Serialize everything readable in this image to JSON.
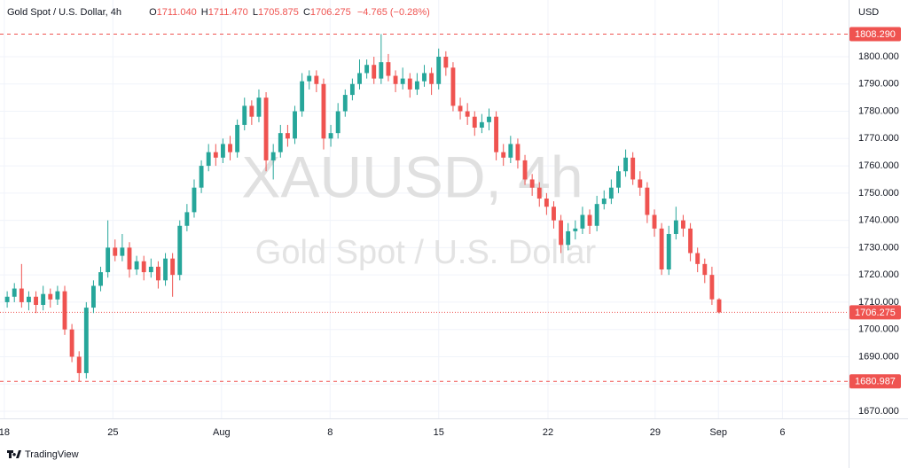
{
  "chart_data": {
    "type": "candlestick",
    "header": {
      "symbol": "Gold Spot / U.S. Dollar, 4h",
      "o_label": "O",
      "o": "1711.040",
      "h_label": "H",
      "h": "1711.470",
      "l_label": "L",
      "l": "1705.875",
      "c_label": "C",
      "c": "1706.275",
      "change": "−4.765 (−0.28%)"
    },
    "watermark": [
      "XAUUSD, 4h",
      "Gold Spot / U.S. Dollar"
    ],
    "currency": "USD",
    "footer": "TradingView",
    "up_color": "#26a69a",
    "down_color": "#ef5350",
    "grid": true,
    "xlim": [
      0,
      118
    ],
    "ylim": [
      1667.4,
      1820.8
    ],
    "xticks": [
      {
        "value": 0.6,
        "label": "18"
      },
      {
        "value": 15.7,
        "label": "25"
      },
      {
        "value": 30.8,
        "label": "Aug"
      },
      {
        "value": 45.9,
        "label": "8"
      },
      {
        "value": 61,
        "label": "15"
      },
      {
        "value": 76.2,
        "label": "22"
      },
      {
        "value": 91.1,
        "label": "29"
      },
      {
        "value": 99.9,
        "label": "Sep"
      },
      {
        "value": 108.8,
        "label": "6"
      }
    ],
    "yticks": [
      {
        "value": 1670,
        "label": "1670.000"
      },
      {
        "value": 1680,
        "label": "1680.000"
      },
      {
        "value": 1690,
        "label": "1690.000"
      },
      {
        "value": 1700,
        "label": "1700.000"
      },
      {
        "value": 1710,
        "label": "1710.000"
      },
      {
        "value": 1720,
        "label": "1720.000"
      },
      {
        "value": 1730,
        "label": "1730.000"
      },
      {
        "value": 1740,
        "label": "1740.000"
      },
      {
        "value": 1750,
        "label": "1750.000"
      },
      {
        "value": 1760,
        "label": "1760.000"
      },
      {
        "value": 1770,
        "label": "1770.000"
      },
      {
        "value": 1780,
        "label": "1780.000"
      },
      {
        "value": 1790,
        "label": "1790.000"
      },
      {
        "value": 1800,
        "label": "1800.000"
      }
    ],
    "price_lines": [
      {
        "value": 1808.29,
        "label": "1808.290",
        "style": "dashed"
      },
      {
        "value": 1706.275,
        "label": "1706.275",
        "style": "dotted"
      },
      {
        "value": 1680.987,
        "label": "1680.987",
        "style": "dashed"
      }
    ],
    "x": [
      1,
      2,
      3,
      4,
      5,
      6,
      7,
      8,
      9,
      10,
      11,
      12,
      13,
      14,
      15,
      16,
      17,
      18,
      19,
      20,
      21,
      22,
      23,
      24,
      25,
      26,
      27,
      28,
      29,
      30,
      31,
      32,
      33,
      34,
      35,
      36,
      37,
      38,
      39,
      40,
      41,
      42,
      43,
      44,
      45,
      46,
      47,
      48,
      49,
      50,
      51,
      52,
      53,
      54,
      55,
      56,
      57,
      58,
      59,
      60,
      61,
      62,
      63,
      64,
      65,
      66,
      67,
      68,
      69,
      70,
      71,
      72,
      73,
      74,
      75,
      76,
      77,
      78,
      79,
      80,
      81,
      82,
      83,
      84,
      85,
      86,
      87,
      88,
      89,
      90,
      91,
      92,
      93,
      94,
      95,
      96,
      97,
      98,
      99,
      100
    ],
    "open": [
      1710,
      1712,
      1715,
      1710,
      1712,
      1709,
      1713,
      1711,
      1714,
      1700,
      1690,
      1684,
      1708,
      1716,
      1721,
      1730,
      1727,
      1730,
      1722,
      1725,
      1721,
      1723,
      1718,
      1726,
      1720,
      1738,
      1743,
      1752,
      1760,
      1765,
      1763,
      1768,
      1765,
      1775,
      1782,
      1778,
      1785,
      1762,
      1765,
      1772,
      1770,
      1780,
      1791,
      1793,
      1790,
      1770,
      1772,
      1780,
      1786,
      1790,
      1794,
      1797,
      1792,
      1798,
      1793,
      1790,
      1792,
      1788,
      1791,
      1794,
      1790,
      1800,
      1796,
      1782,
      1780,
      1778,
      1774,
      1776,
      1778,
      1765,
      1763,
      1768,
      1762,
      1755,
      1752,
      1748,
      1745,
      1740,
      1731,
      1736,
      1737,
      1742,
      1738,
      1746,
      1748,
      1752,
      1758,
      1763,
      1755,
      1752,
      1742,
      1737,
      1722,
      1735,
      1740,
      1737,
      1728,
      1724,
      1720,
      1711.04
    ],
    "high": [
      1714,
      1717,
      1724,
      1714,
      1714,
      1716,
      1715,
      1716,
      1716,
      1702,
      1692,
      1710,
      1718,
      1723,
      1740,
      1733,
      1735,
      1732,
      1727,
      1727,
      1726,
      1725,
      1728,
      1728,
      1740,
      1746,
      1755,
      1762,
      1768,
      1768,
      1770,
      1771,
      1777,
      1785,
      1784,
      1788,
      1787,
      1768,
      1775,
      1775,
      1782,
      1794,
      1795,
      1795,
      1792,
      1775,
      1783,
      1788,
      1792,
      1799,
      1799,
      1800,
      1808.29,
      1801,
      1795,
      1796,
      1794,
      1794,
      1797,
      1796,
      1803,
      1802,
      1798,
      1785,
      1783,
      1780,
      1779,
      1781,
      1780,
      1768,
      1771,
      1770,
      1764,
      1757,
      1754,
      1750,
      1747,
      1742,
      1739,
      1740,
      1745,
      1744,
      1749,
      1751,
      1755,
      1760,
      1766,
      1765,
      1758,
      1754,
      1744,
      1739,
      1738,
      1745,
      1742,
      1739,
      1730,
      1726,
      1723,
      1711.47
    ],
    "low": [
      1708,
      1710,
      1708,
      1707,
      1706,
      1707,
      1708,
      1709,
      1698,
      1688,
      1680.987,
      1682,
      1706,
      1714,
      1719,
      1725,
      1725,
      1719,
      1720,
      1718,
      1719,
      1715,
      1716,
      1712,
      1718,
      1736,
      1741,
      1750,
      1758,
      1760,
      1761,
      1762,
      1763,
      1773,
      1775,
      1776,
      1758,
      1755,
      1763,
      1767,
      1768,
      1778,
      1788,
      1787,
      1766,
      1767,
      1770,
      1778,
      1784,
      1788,
      1792,
      1790,
      1790,
      1791,
      1787,
      1788,
      1785,
      1786,
      1789,
      1786,
      1788,
      1793,
      1780,
      1777,
      1775,
      1771,
      1772,
      1773,
      1762,
      1760,
      1761,
      1759,
      1753,
      1749,
      1745,
      1742,
      1737,
      1728,
      1729,
      1733,
      1735,
      1735,
      1736,
      1744,
      1746,
      1750,
      1756,
      1753,
      1749,
      1739,
      1734,
      1720,
      1720,
      1733,
      1734,
      1725,
      1721,
      1717,
      1709,
      1705.875
    ],
    "close": [
      1712,
      1715,
      1710,
      1712,
      1709,
      1713,
      1711,
      1714,
      1700,
      1690,
      1684,
      1708,
      1716,
      1721,
      1730,
      1727,
      1730,
      1722,
      1725,
      1721,
      1723,
      1718,
      1726,
      1720,
      1738,
      1743,
      1752,
      1760,
      1765,
      1763,
      1768,
      1765,
      1775,
      1782,
      1778,
      1785,
      1762,
      1765,
      1772,
      1770,
      1780,
      1791,
      1793,
      1790,
      1770,
      1772,
      1780,
      1786,
      1790,
      1794,
      1797,
      1792,
      1798,
      1793,
      1790,
      1792,
      1788,
      1791,
      1794,
      1790,
      1800,
      1796,
      1782,
      1780,
      1778,
      1774,
      1776,
      1778,
      1765,
      1763,
      1768,
      1762,
      1755,
      1752,
      1748,
      1745,
      1740,
      1731,
      1736,
      1737,
      1742,
      1738,
      1746,
      1748,
      1752,
      1758,
      1763,
      1755,
      1752,
      1742,
      1737,
      1722,
      1735,
      1740,
      1737,
      1728,
      1724,
      1720,
      1711.04,
      1706.275
    ]
  }
}
